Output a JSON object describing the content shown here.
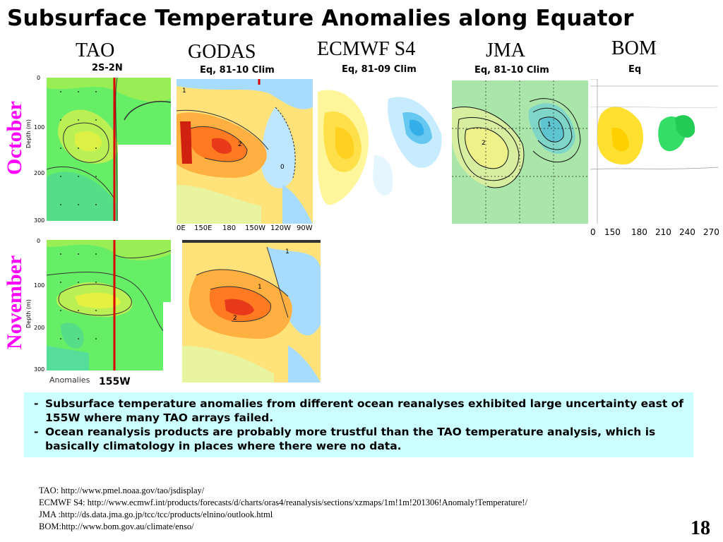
{
  "title": "Subsurface Temperature Anomalies along Equator",
  "products": [
    {
      "name": "TAO",
      "subtitle": "2S-2N"
    },
    {
      "name": "GODAS",
      "subtitle": "Eq, 81-10 Clim"
    },
    {
      "name": "ECMWF S4",
      "subtitle": "Eq, 81-09 Clim"
    },
    {
      "name": "JMA",
      "subtitle": "Eq, 81-10 Clim"
    },
    {
      "name": "BOM",
      "subtitle": "Eq"
    }
  ],
  "months": [
    "October",
    "November"
  ],
  "tao_axis": {
    "ylabel": "Depth (m)",
    "yticks": [
      "0",
      "100",
      "200",
      "300"
    ],
    "bottom_label": "Anomalies",
    "marker_label": "155W"
  },
  "godas_xticks": [
    "0E",
    "150E",
    "180",
    "150W",
    "120W",
    "90W"
  ],
  "bom_xticks": [
    "0",
    "150",
    "180",
    "210",
    "240",
    "270"
  ],
  "contour_labels": {
    "one": "1",
    "two": "2",
    "zero": "0"
  },
  "notes": [
    "Subsurface temperature anomalies from different ocean reanalyses exhibited large uncertainty east of 155W where many TAO arrays failed.",
    "Ocean reanalysis products are probably more trustful than the TAO temperature analysis, which is basically climatology in places where there were no data."
  ],
  "sources": [
    "TAO: http://www.pmel.noaa.gov/tao/jsdisplay/",
    "ECMWF S4: http://www.ecmwf.int/products/forecasts/d/charts/oras4/reanalysis/sections/xzmaps/1m!1m!201306!Anomaly!Temperature!/",
    "JMA :http://ds.data.jma.go.jp/tcc/tcc/products/elnino/outlook.html",
    "BOM:http://www.bom.gov.au/climate/enso/"
  ],
  "page_number": "18",
  "colors": {
    "month": "#ff00ff",
    "note_bg": "#ccffff",
    "marker": "#dd0000"
  }
}
